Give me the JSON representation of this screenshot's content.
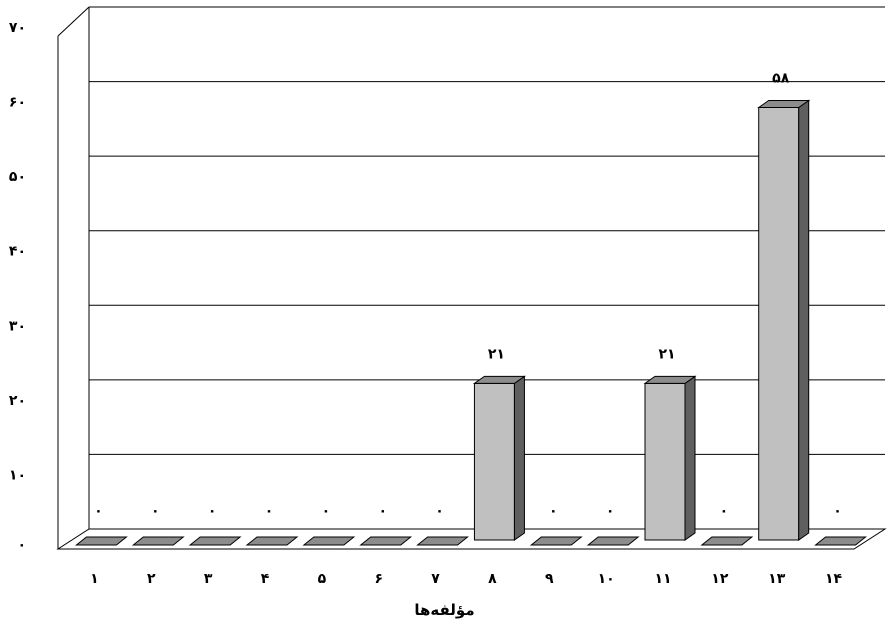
{
  "chart_data": {
    "type": "bar",
    "title": "",
    "xlabel": "مؤلفه‌ها",
    "ylabel": "",
    "ylim": [
      0,
      70
    ],
    "y_ticks": [
      0,
      10,
      20,
      30,
      40,
      50,
      60,
      70
    ],
    "y_tick_labels": [
      "۰",
      "۱۰",
      "۲۰",
      "۳۰",
      "۴۰",
      "۵۰",
      "۶۰",
      "۷۰"
    ],
    "categories": [
      "۱",
      "۲",
      "۳",
      "۴",
      "۵",
      "۶",
      "۷",
      "۸",
      "۹",
      "۱۰",
      "۱۱",
      "۱۲",
      "۱۳",
      "۱۴"
    ],
    "values": [
      0,
      0,
      0,
      0,
      0,
      0,
      0,
      21,
      0,
      0,
      21,
      0,
      58,
      0
    ],
    "data_labels": [
      "۰",
      "۰",
      "۰",
      "۰",
      "۰",
      "۰",
      "۰",
      "۲۱",
      "۰",
      "۰",
      "۲۱",
      "۰",
      "۵۸",
      "۰"
    ],
    "grid": true,
    "style": "3d-column",
    "colors": {
      "bar_front": "#c0c0c0",
      "bar_side": "#5f5f5f",
      "bar_top": "#8c8c8c",
      "grid": "#000000"
    }
  }
}
